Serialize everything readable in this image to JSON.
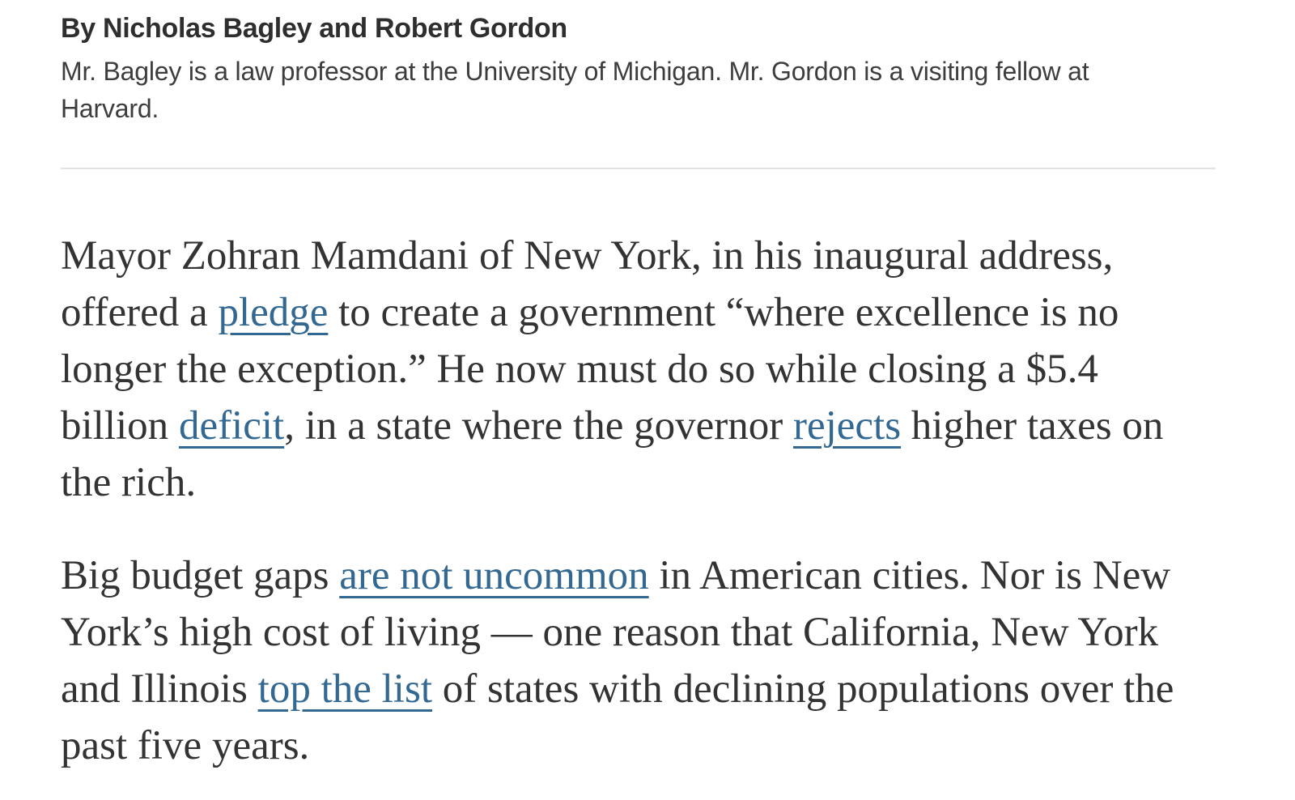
{
  "page": {
    "background": "#ffffff"
  },
  "colors": {
    "body_text": "#333333",
    "byline_text": "#2e2e2e",
    "bio_text": "#3d3d3d",
    "link": "#326891",
    "divider": "#e2e2e2"
  },
  "article": {
    "byline": "By Nicholas Bagley and Robert Gordon",
    "bio": "Mr. Bagley is a law professor at the University of Michigan. Mr. Gordon is a visiting fellow at Harvard.",
    "paragraphs": [
      {
        "lines": [
          [
            {
              "t": "Mayor Zohran Mamdani of New York, in his inaugural address,"
            }
          ],
          [
            {
              "t": "offered a "
            },
            {
              "t": "pledge",
              "link": true,
              "name": "pledge-link"
            },
            {
              "t": " to create a government “where excellence is no"
            }
          ],
          [
            {
              "t": "longer the exception.” He now must do so while closing a $5.4"
            }
          ],
          [
            {
              "t": "billion "
            },
            {
              "t": "deficit",
              "link": true,
              "name": "deficit-link"
            },
            {
              "t": ", in a state where the governor "
            },
            {
              "t": "rejects",
              "link": true,
              "name": "rejects-link"
            },
            {
              "t": " higher taxes on"
            }
          ],
          [
            {
              "t": "the rich."
            }
          ]
        ]
      },
      {
        "lines": [
          [
            {
              "t": "Big budget gaps "
            },
            {
              "t": "are not uncommon",
              "link": true,
              "name": "are-not-uncommon-link"
            },
            {
              "t": " in American cities. Nor is New"
            }
          ],
          [
            {
              "t": "York’s high cost of living — one reason that California, New York"
            }
          ],
          [
            {
              "t": "and Illinois "
            },
            {
              "t": "top the list",
              "link": true,
              "name": "top-the-list-link"
            },
            {
              "t": " of states with declining populations over the"
            }
          ],
          [
            {
              "t": "past five years."
            }
          ]
        ]
      }
    ]
  }
}
